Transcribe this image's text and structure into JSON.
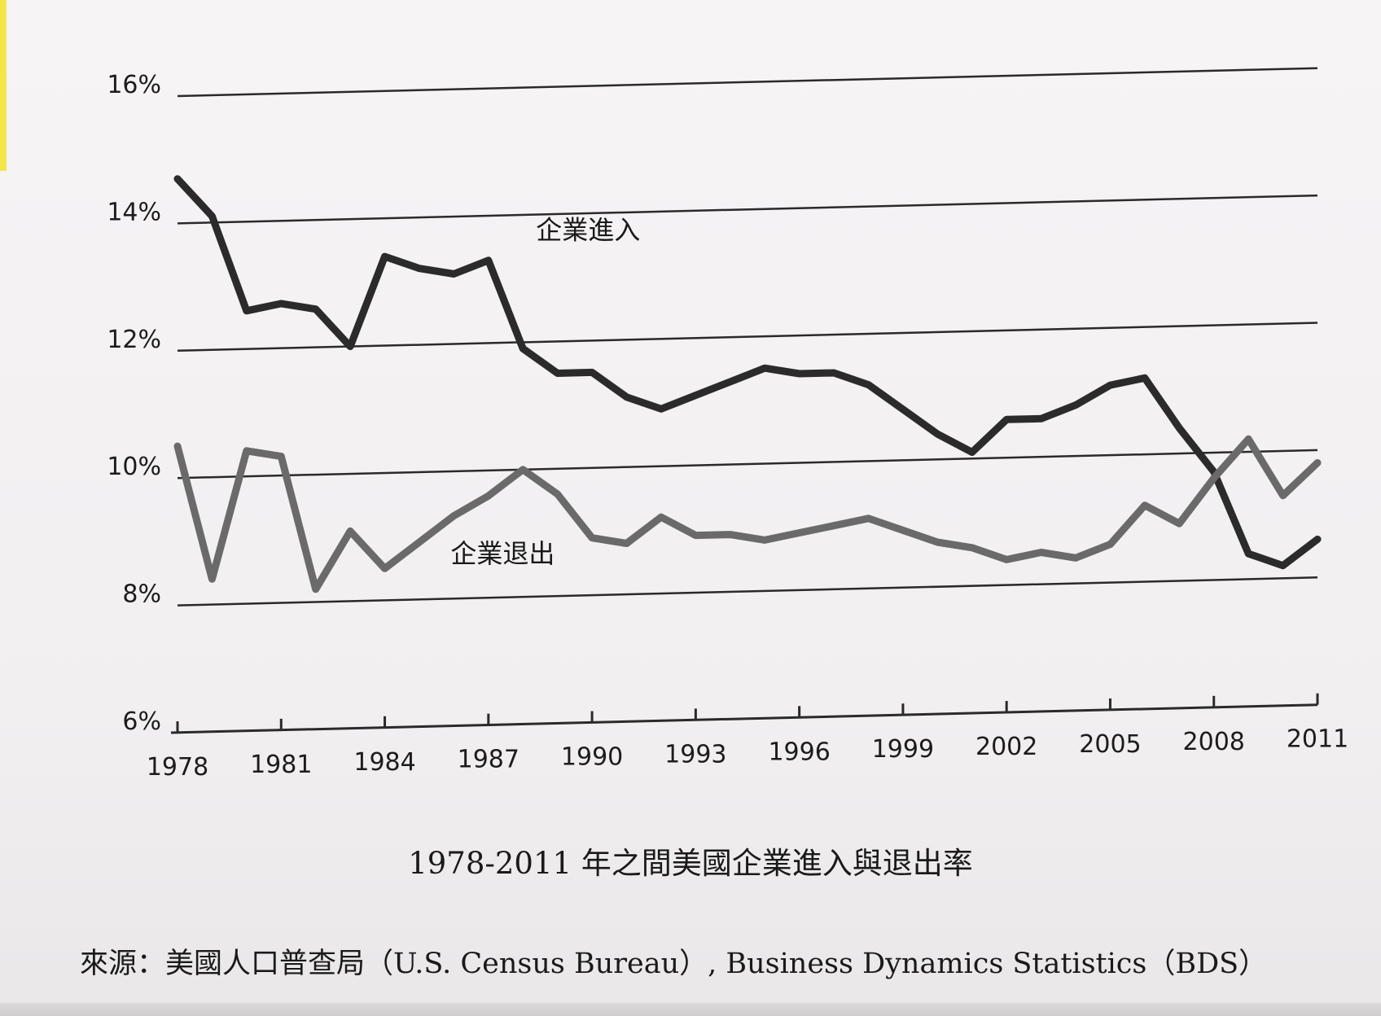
{
  "chart_data": {
    "type": "line",
    "x": [
      1978,
      1979,
      1980,
      1981,
      1982,
      1983,
      1984,
      1985,
      1986,
      1987,
      1988,
      1989,
      1990,
      1991,
      1992,
      1993,
      1994,
      1995,
      1996,
      1997,
      1998,
      1999,
      2000,
      2001,
      2002,
      2003,
      2004,
      2005,
      2006,
      2007,
      2008,
      2009,
      2010,
      2011
    ],
    "series": [
      {
        "name": "企業進入",
        "color": "#2b2b2b",
        "values": [
          14.7,
          14.1,
          12.6,
          12.7,
          12.6,
          12.0,
          13.4,
          13.2,
          13.1,
          13.3,
          11.9,
          11.5,
          11.5,
          11.1,
          10.9,
          11.1,
          11.3,
          11.5,
          11.4,
          11.4,
          11.2,
          10.8,
          10.4,
          10.1,
          10.6,
          10.6,
          10.8,
          11.1,
          11.2,
          10.4,
          9.7,
          8.4,
          8.2,
          8.6
        ]
      },
      {
        "name": "企業退出",
        "color": "#6a6a6a",
        "values": [
          10.5,
          8.4,
          10.4,
          10.3,
          8.2,
          9.1,
          8.5,
          8.9,
          9.3,
          9.6,
          10.0,
          9.6,
          8.9,
          8.8,
          9.2,
          8.9,
          8.9,
          8.8,
          8.9,
          9.0,
          9.1,
          8.9,
          8.7,
          8.6,
          8.4,
          8.5,
          8.4,
          8.6,
          9.2,
          8.9,
          9.6,
          10.2,
          9.3,
          9.8
        ]
      }
    ],
    "y_ticks": [
      "6%",
      "8%",
      "10%",
      "12%",
      "14%",
      "16%"
    ],
    "x_ticks": [
      "1978",
      "1981",
      "1984",
      "1987",
      "1990",
      "1993",
      "1996",
      "1999",
      "2002",
      "2005",
      "2008",
      "2011"
    ],
    "ylim": [
      6,
      16
    ],
    "xlim": [
      1978,
      2011
    ],
    "grid": true,
    "title": "1978-2011 年之間美國企業進入與退出率",
    "source": "來源：美國人口普查局（U.S. Census Bureau）, Business Dynamics Statistics（BDS）"
  }
}
